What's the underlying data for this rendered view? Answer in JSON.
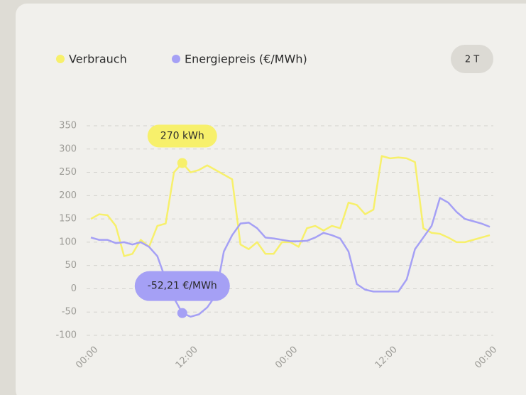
{
  "chart_data": {
    "type": "line",
    "x": [
      0,
      1,
      2,
      3,
      4,
      5,
      6,
      7,
      8,
      9,
      10,
      11,
      12,
      13,
      14,
      15,
      16,
      17,
      18,
      19,
      20,
      21,
      22,
      23,
      24,
      25,
      26,
      27,
      28,
      29,
      30,
      31,
      32,
      33,
      34,
      35,
      36,
      37,
      38,
      39,
      40,
      41,
      42,
      43,
      44,
      45,
      46,
      47,
      48
    ],
    "series": [
      {
        "name": "Verbrauch",
        "color": "#f7f06b",
        "values": [
          150,
          160,
          158,
          135,
          70,
          75,
          105,
          90,
          135,
          140,
          250,
          270,
          250,
          255,
          265,
          255,
          245,
          235,
          95,
          85,
          100,
          75,
          75,
          100,
          100,
          90,
          130,
          135,
          125,
          135,
          130,
          185,
          180,
          160,
          170,
          285,
          280,
          282,
          280,
          272,
          130,
          120,
          118,
          110,
          100,
          100,
          105,
          110,
          115
        ]
      },
      {
        "name": "Energiepreis (€/MWh)",
        "color": "#a5a0f5",
        "values": [
          110,
          105,
          105,
          98,
          100,
          95,
          100,
          90,
          70,
          20,
          -20,
          -52.21,
          -60,
          -55,
          -40,
          -15,
          80,
          115,
          140,
          142,
          130,
          110,
          108,
          105,
          102,
          102,
          103,
          110,
          120,
          115,
          108,
          80,
          10,
          -2,
          -6,
          -6,
          -6,
          -6,
          20,
          85,
          110,
          135,
          195,
          185,
          165,
          150,
          145,
          140,
          133
        ]
      }
    ],
    "xlim": [
      0,
      48
    ],
    "xticks": [
      {
        "value": 0,
        "label": "00:00"
      },
      {
        "value": 12,
        "label": "12:00"
      },
      {
        "value": 24,
        "label": "00:00"
      },
      {
        "value": 36,
        "label": "12:00"
      },
      {
        "value": 48,
        "label": "00:00"
      }
    ],
    "ylim": [
      -100,
      350
    ],
    "yticks": [
      -100,
      -50,
      0,
      50,
      100,
      150,
      200,
      250,
      300,
      350
    ],
    "grid": true,
    "annotations": [
      {
        "label": "270 kWh",
        "x": 11,
        "y": 270,
        "series": 0
      },
      {
        "label": "-52,21 €/MWh",
        "x": 11,
        "y": -52.21,
        "series": 1
      }
    ]
  },
  "controls": {
    "range_button": "2 T"
  }
}
